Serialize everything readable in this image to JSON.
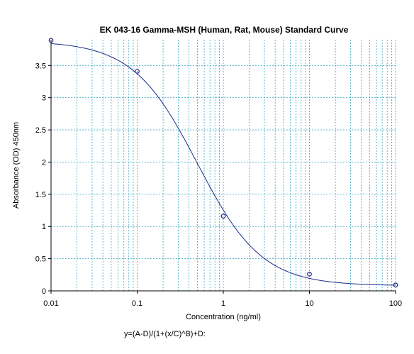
{
  "chart_data": {
    "type": "scatter",
    "title": "EK 043-16 Gamma-MSH (Human, Rat, Mouse) Standard Curve",
    "xlabel": "Concentration (ng/ml)",
    "ylabel": "Absorbance (OD) 450nm",
    "x_scale": "log",
    "xlim": [
      0.01,
      100
    ],
    "ylim": [
      0,
      3.9
    ],
    "x_ticks": [
      0.01,
      0.1,
      1,
      10,
      100
    ],
    "x_tick_labels": [
      "0.01",
      "0.1",
      "1",
      "10",
      "100"
    ],
    "y_ticks": [
      0,
      0.5,
      1,
      1.5,
      2,
      2.5,
      3,
      3.5
    ],
    "y_tick_labels": [
      "0",
      "0.5",
      "1",
      "1.5",
      "2",
      "2.5",
      "3",
      "3.5"
    ],
    "grid": true,
    "series": [
      {
        "kind": "points",
        "x": [
          0.01,
          0.1,
          1,
          10,
          100
        ],
        "y": [
          3.89,
          3.41,
          1.16,
          0.26,
          0.09
        ]
      },
      {
        "kind": "fit",
        "model": "four-parameter logistic",
        "params": {
          "A": 3.88,
          "B": 1.16,
          "C": 0.5,
          "D": 0.08
        }
      }
    ],
    "formula": "y=(A-D)/(1+(x/C)^B)+D:",
    "colors": {
      "points": "#1a2a8c",
      "curve": "#1a2a8c",
      "grid": "#3aa6c4",
      "axes": "#000000"
    }
  }
}
